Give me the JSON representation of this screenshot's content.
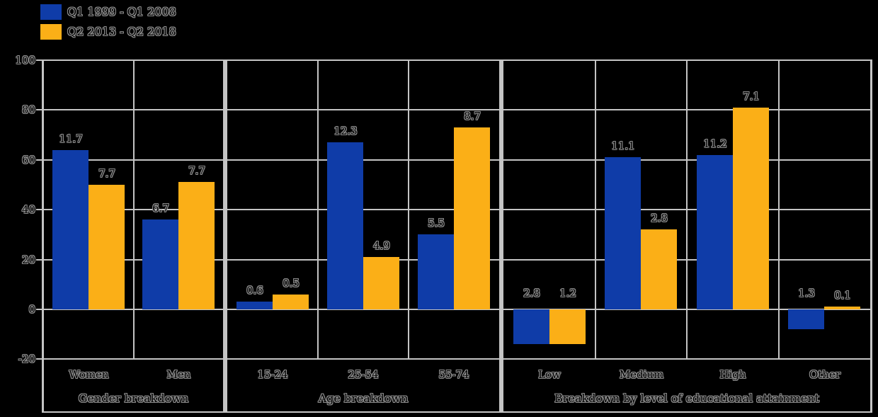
{
  "legend": {
    "items": [
      {
        "label": "Q1 1999 - Q1 2008",
        "color": "#0F3CA8"
      },
      {
        "label": "Q2 2013 - Q2 2018",
        "color": "#FBAF17"
      }
    ]
  },
  "colors": {
    "background": "#000000",
    "grid": "#C4C4C4",
    "series1": "#0F3CA8",
    "series2": "#FBAF17",
    "text_outline": "#8F8F8F"
  },
  "chart_data": {
    "type": "bar",
    "grid": true,
    "legend_position": "top-left",
    "ylim": [
      -20,
      100
    ],
    "y_axis": {
      "tick_values": [
        100,
        80,
        60,
        40,
        20,
        0,
        -20
      ],
      "tick_labels": [
        "100",
        "80",
        "60",
        "40",
        "20",
        "0",
        "-20"
      ]
    },
    "series_names": [
      "Q1 1999 - Q1 2008",
      "Q2 2013 - Q2 2018"
    ],
    "panels": [
      {
        "title": "Gender breakdown",
        "categories": [
          "Women",
          "Men"
        ],
        "series": [
          {
            "name": "Q1 1999 - Q1 2008",
            "color": "#0F3CA8",
            "data_labels": [
              "11.7",
              "6.7"
            ],
            "bar_values": [
              64,
              36
            ]
          },
          {
            "name": "Q2 2013 - Q2 2018",
            "color": "#FBAF17",
            "data_labels": [
              "7.7",
              "7.7"
            ],
            "bar_values": [
              50,
              51
            ]
          }
        ]
      },
      {
        "title": "Age breakdown",
        "categories": [
          "15-24",
          "25-54",
          "55-74"
        ],
        "series": [
          {
            "name": "Q1 1999 - Q1 2008",
            "color": "#0F3CA8",
            "data_labels": [
              "0.6",
              "12.3",
              "5.5"
            ],
            "bar_values": [
              3,
              67,
              30
            ]
          },
          {
            "name": "Q2 2013 - Q2 2018",
            "color": "#FBAF17",
            "data_labels": [
              "0.5",
              "4.9",
              "8.7"
            ],
            "bar_values": [
              6,
              21,
              73
            ]
          }
        ]
      },
      {
        "title": "Breakdown by level of educational attainment",
        "categories": [
          "Low",
          "Medium",
          "High",
          "Other"
        ],
        "series": [
          {
            "name": "Q1 1999 - Q1 2008",
            "color": "#0F3CA8",
            "data_labels": [
              "2.8",
              "11.1",
              "11.2",
              "1.3"
            ],
            "bar_values": [
              -14,
              61,
              62,
              -8
            ]
          },
          {
            "name": "Q2 2013 - Q2 2018",
            "color": "#FBAF17",
            "data_labels": [
              "1.2",
              "2.8",
              "7.1",
              "0.1"
            ],
            "bar_values": [
              -14,
              32,
              81,
              1
            ]
          }
        ]
      }
    ]
  }
}
